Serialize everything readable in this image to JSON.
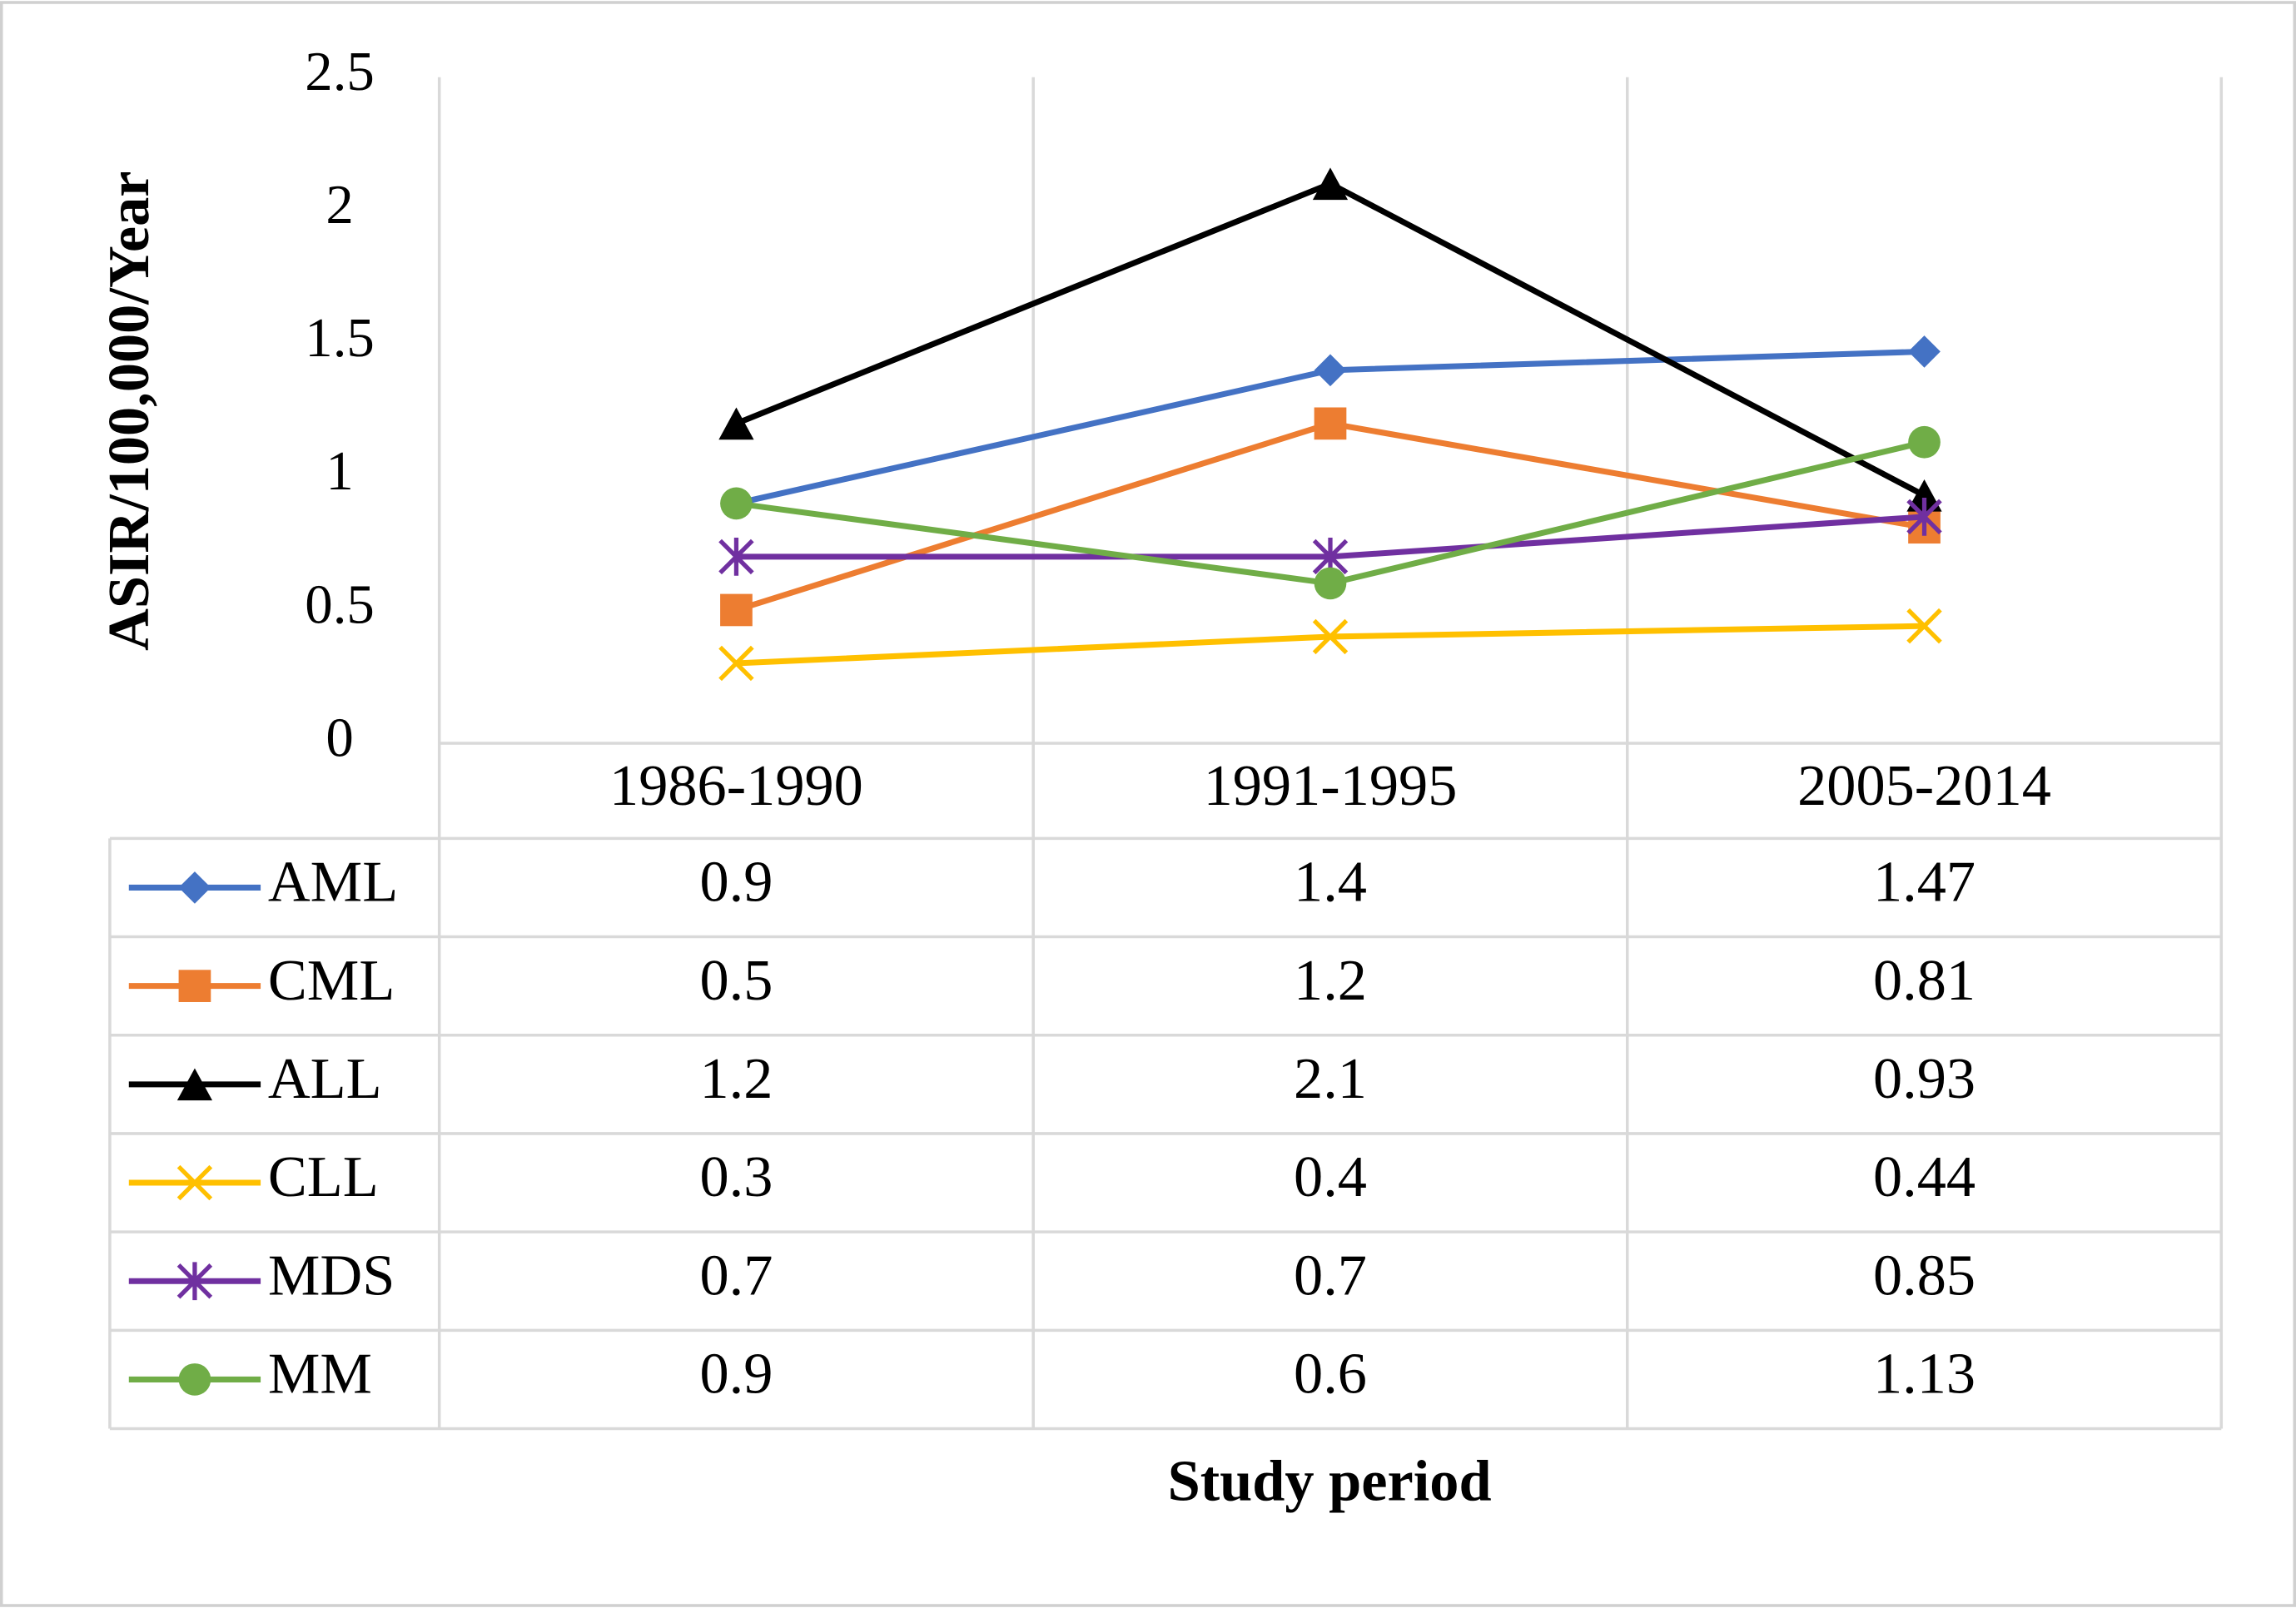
{
  "chart_data": {
    "type": "line",
    "y_label": "ASIR/100,000/Year",
    "x_label": "Study period",
    "categories": [
      "1986-1990",
      "1991-1995",
      "2005-2014"
    ],
    "series": [
      {
        "name": "AML",
        "color": "#4472c4",
        "marker": "diamond",
        "values": [
          0.9,
          1.4,
          1.47
        ]
      },
      {
        "name": "CML",
        "color": "#ed7d31",
        "marker": "square",
        "values": [
          0.5,
          1.2,
          0.81
        ]
      },
      {
        "name": "ALL",
        "color": "#000000",
        "marker": "triangle",
        "values": [
          1.2,
          2.1,
          0.93
        ]
      },
      {
        "name": "CLL",
        "color": "#ffc000",
        "marker": "x",
        "values": [
          0.3,
          0.4,
          0.44
        ]
      },
      {
        "name": "MDS",
        "color": "#7030a0",
        "marker": "star",
        "values": [
          0.7,
          0.7,
          0.85
        ]
      },
      {
        "name": "MM",
        "color": "#70ad47",
        "marker": "circle",
        "values": [
          0.9,
          0.6,
          1.13
        ]
      }
    ],
    "ylim": [
      0,
      2.5
    ],
    "yticks": [
      0,
      0.5,
      1,
      1.5,
      2,
      2.5
    ],
    "data_table": true
  }
}
